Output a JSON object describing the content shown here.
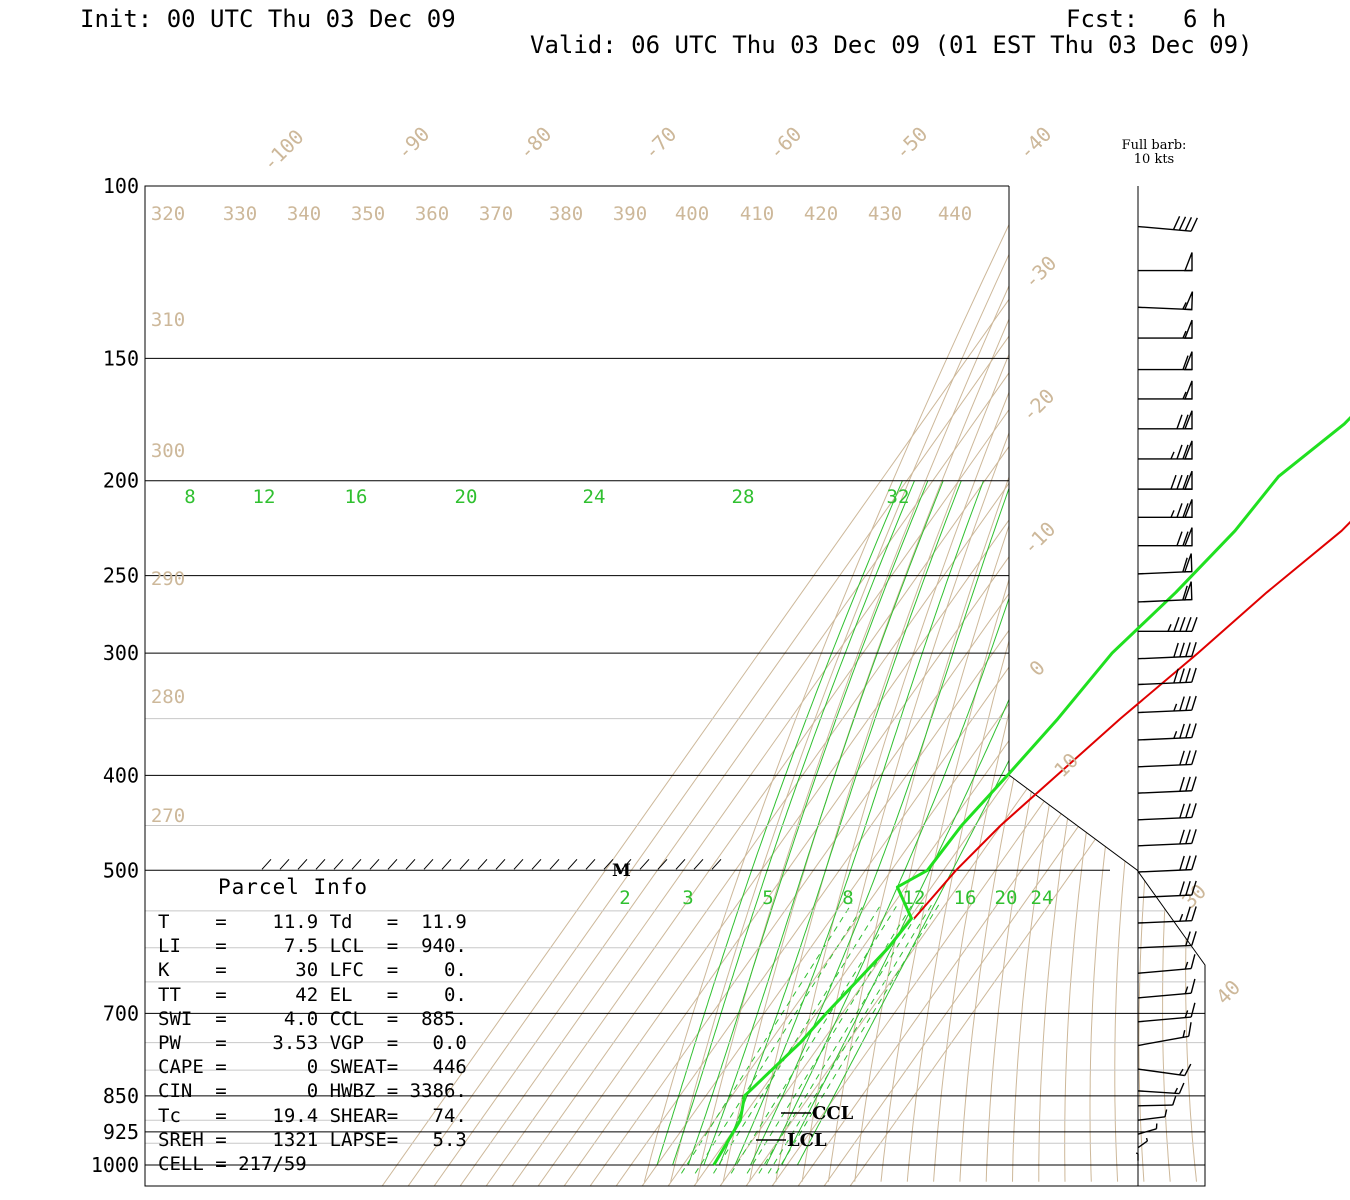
{
  "header": {
    "init": "Init: 00 UTC Thu 03 Dec 09",
    "fcst_label": "Fcst:",
    "fcst_value": "6 h",
    "valid": "Valid: 06 UTC Thu 03 Dec 09 (01 EST Thu 03 Dec 09)"
  },
  "barb_legend": {
    "line1": "Full barb:",
    "line2": "10 kts"
  },
  "parcel_info": {
    "title": "Parcel Info",
    "rows": [
      [
        "T",
        "11.9",
        "Td",
        "11.9"
      ],
      [
        "LI",
        "7.5",
        "LCL",
        "940."
      ],
      [
        "K",
        "30",
        "LFC",
        "0."
      ],
      [
        "TT",
        "42",
        "EL",
        "0."
      ],
      [
        "SWI",
        "4.0",
        "CCL",
        "885."
      ],
      [
        "PW",
        "3.53",
        "VGP",
        "0.0"
      ],
      [
        "CAPE",
        "0",
        "SWEAT",
        "446"
      ],
      [
        "CIN",
        "0",
        "HWBZ",
        "3386."
      ],
      [
        "Tc",
        "19.4",
        "SHEAR",
        "74."
      ],
      [
        "SREH",
        "1321",
        "LAPSE",
        "5.3"
      ]
    ],
    "cell": "CELL = 217/59"
  },
  "chart_data": {
    "type": "line",
    "diagram": "skew-T log-P",
    "y_axis": {
      "label": "",
      "scale": "log",
      "ticks": [
        100,
        150,
        200,
        250,
        300,
        400,
        500,
        700,
        850,
        925,
        1000
      ]
    },
    "temperature_isotherm_labels": [
      "-100",
      "-90",
      "-80",
      "-70",
      "-60",
      "-50",
      "-40",
      "-30",
      "-20",
      "-10",
      "0",
      "10",
      "30",
      "40"
    ],
    "dry_adiabat_labels": [
      "320",
      "330",
      "340",
      "350",
      "360",
      "370",
      "380",
      "390",
      "400",
      "410",
      "420",
      "430",
      "440",
      "310",
      "300",
      "290",
      "280",
      "270"
    ],
    "moist_adiabat_labels": [
      "8",
      "12",
      "16",
      "20",
      "24",
      "28",
      "32"
    ],
    "mixing_ratio_labels": [
      "2",
      "3",
      "5",
      "8",
      "12",
      "16",
      "20",
      "24"
    ],
    "annotations": [
      "M",
      "CCL",
      "LCL"
    ],
    "series": [
      {
        "color": "#e00000",
        "points": [
          [
            105,
            399
          ],
          [
            111,
            397
          ],
          [
            125,
            392
          ],
          [
            140,
            380
          ],
          [
            160,
            361
          ],
          [
            180,
            349
          ],
          [
            198,
            350
          ],
          [
            225,
            344
          ],
          [
            260,
            332
          ],
          [
            300,
            322
          ],
          [
            350,
            310
          ],
          [
            400,
            301
          ],
          [
            450,
            293
          ],
          [
            500,
            288
          ],
          [
            540,
            286
          ],
          [
            560,
            285
          ]
        ]
      },
      {
        "color": "#20e020",
        "points": [
          [
            105,
            364
          ],
          [
            111,
            363
          ],
          [
            125,
            344
          ],
          [
            135,
            325
          ],
          [
            150,
            319
          ],
          [
            160,
            320
          ],
          [
            175,
            316
          ],
          [
            198,
            305
          ],
          [
            225,
            303
          ],
          [
            260,
            297
          ],
          [
            300,
            289
          ],
          [
            350,
            286
          ],
          [
            400,
            282
          ],
          [
            450,
            278
          ],
          [
            500,
            277
          ],
          [
            520,
            270
          ],
          [
            560,
            284
          ],
          [
            600,
            283
          ],
          [
            650,
            280
          ],
          [
            700,
            277
          ],
          [
            750,
            275
          ],
          [
            850,
            268
          ],
          [
            900,
            273
          ],
          [
            1000,
            275
          ]
        ]
      }
    ],
    "wind_profile": [
      {
        "p": 110,
        "dir": 280,
        "spd": 40
      },
      {
        "p": 122,
        "dir": 270,
        "spd": 50
      },
      {
        "p": 133,
        "dir": 275,
        "spd": 55
      },
      {
        "p": 143,
        "dir": 270,
        "spd": 55
      },
      {
        "p": 154,
        "dir": 270,
        "spd": 60
      },
      {
        "p": 165,
        "dir": 270,
        "spd": 55
      },
      {
        "p": 177,
        "dir": 270,
        "spd": 70
      },
      {
        "p": 190,
        "dir": 270,
        "spd": 75
      },
      {
        "p": 204,
        "dir": 270,
        "spd": 80
      },
      {
        "p": 218,
        "dir": 270,
        "spd": 75
      },
      {
        "p": 233,
        "dir": 270,
        "spd": 70
      },
      {
        "p": 249,
        "dir": 265,
        "spd": 60
      },
      {
        "p": 266,
        "dir": 265,
        "spd": 60
      },
      {
        "p": 285,
        "dir": 270,
        "spd": 45
      },
      {
        "p": 304,
        "dir": 265,
        "spd": 40
      },
      {
        "p": 323,
        "dir": 265,
        "spd": 40
      },
      {
        "p": 345,
        "dir": 265,
        "spd": 35
      },
      {
        "p": 368,
        "dir": 265,
        "spd": 35
      },
      {
        "p": 392,
        "dir": 265,
        "spd": 30
      },
      {
        "p": 417,
        "dir": 265,
        "spd": 30
      },
      {
        "p": 444,
        "dir": 265,
        "spd": 30
      },
      {
        "p": 472,
        "dir": 265,
        "spd": 30
      },
      {
        "p": 502,
        "dir": 265,
        "spd": 30
      },
      {
        "p": 533,
        "dir": 265,
        "spd": 30
      },
      {
        "p": 566,
        "dir": 265,
        "spd": 25
      },
      {
        "p": 600,
        "dir": 265,
        "spd": 20
      },
      {
        "p": 637,
        "dir": 260,
        "spd": 15
      },
      {
        "p": 675,
        "dir": 260,
        "spd": 15
      },
      {
        "p": 714,
        "dir": 260,
        "spd": 15
      },
      {
        "p": 755,
        "dir": 250,
        "spd": 15
      },
      {
        "p": 798,
        "dir": 240,
        "spd": 15
      },
      {
        "p": 840,
        "dir": 230,
        "spd": 15
      },
      {
        "p": 870,
        "dir": 220,
        "spd": 10
      },
      {
        "p": 900,
        "dir": 210,
        "spd": 10
      },
      {
        "p": 930,
        "dir": 200,
        "spd": 10
      },
      {
        "p": 960,
        "dir": 190,
        "spd": 10
      },
      {
        "p": 990,
        "dir": 180,
        "spd": 10
      }
    ]
  }
}
